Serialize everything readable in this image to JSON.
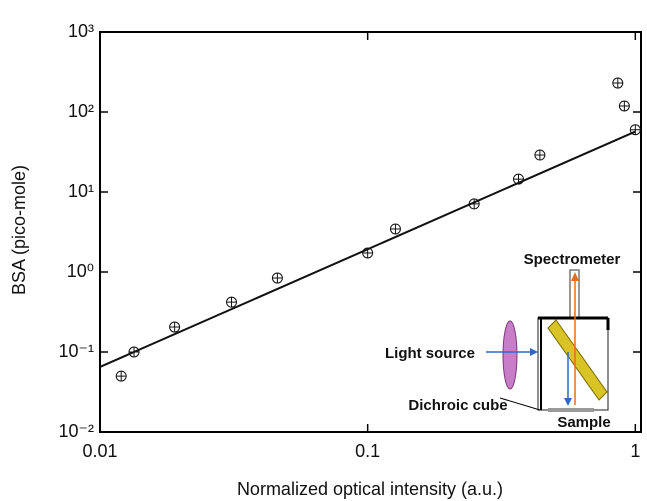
{
  "chart_data": {
    "type": "scatter",
    "x_label": "Normalized optical intensity (a.u.)",
    "y_label": "BSA (pico-mole)",
    "log_x": true,
    "log_y": true,
    "xlim": [
      0.01,
      1.05
    ],
    "xticks": [
      0.01,
      0.1,
      1
    ],
    "ylim": [
      0.01,
      1000
    ],
    "yticks": [
      {
        "value": 0.01,
        "label": "10⁻²"
      },
      {
        "value": 0.1,
        "label": "10⁻¹"
      },
      {
        "value": 1,
        "label": "10⁰"
      },
      {
        "value": 10,
        "label": "10¹"
      },
      {
        "value": 100,
        "label": "10²"
      },
      {
        "value": 1000,
        "label": "10³"
      }
    ],
    "series": [
      {
        "color": "#111111",
        "x": [
          0.012,
          0.0134,
          0.019,
          0.031,
          0.046,
          0.1,
          0.127,
          0.25,
          0.366,
          0.44,
          0.86,
          0.91,
          1.0
        ],
        "values": [
          0.05,
          0.1,
          0.205,
          0.42,
          0.84,
          1.73,
          3.45,
          7.1,
          14.5,
          29,
          230,
          119,
          60
        ]
      },
      {
        "type": "line",
        "color": "#111111",
        "x": [
          0.01,
          1
        ],
        "values": [
          0.065,
          57
        ]
      }
    ],
    "inset_labels": [
      "Spectrometer",
      "Light source",
      "Dichroic cube",
      "Sample"
    ]
  }
}
